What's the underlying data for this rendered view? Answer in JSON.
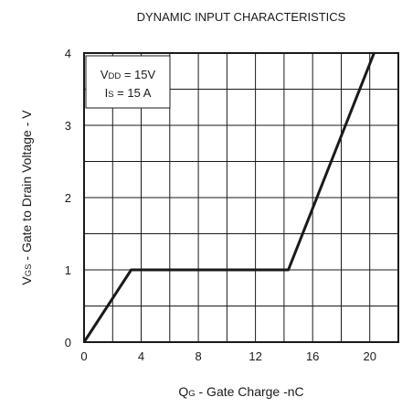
{
  "chart_data": {
    "type": "line",
    "title": "DYNAMIC INPUT CHARACTERISTICS",
    "xlabel": {
      "main": "Q",
      "sub": "G",
      "rest": " - Gate Charge -nC"
    },
    "ylabel": {
      "main": "V",
      "sub": "GS",
      "rest": " - Gate to Drain Voltage - V"
    },
    "xlim": [
      0,
      22
    ],
    "ylim": [
      0,
      4
    ],
    "x_ticks": [
      "0",
      "4",
      "8",
      "12",
      "16",
      "20"
    ],
    "y_ticks": [
      "0",
      "1",
      "2",
      "3",
      "4"
    ],
    "grid": true,
    "legend_box": [
      {
        "main": "V",
        "sub": "DD",
        "rest": " = 15V"
      },
      {
        "main": "I",
        "sub": "S",
        "rest": " = 15 A"
      }
    ],
    "series": [
      {
        "x": [
          0,
          3.3,
          14.3,
          20.3
        ],
        "y": [
          0,
          1,
          1,
          4
        ]
      }
    ],
    "colors": {
      "line": "#1a1a1a",
      "grid": "#1a1a1a"
    }
  }
}
